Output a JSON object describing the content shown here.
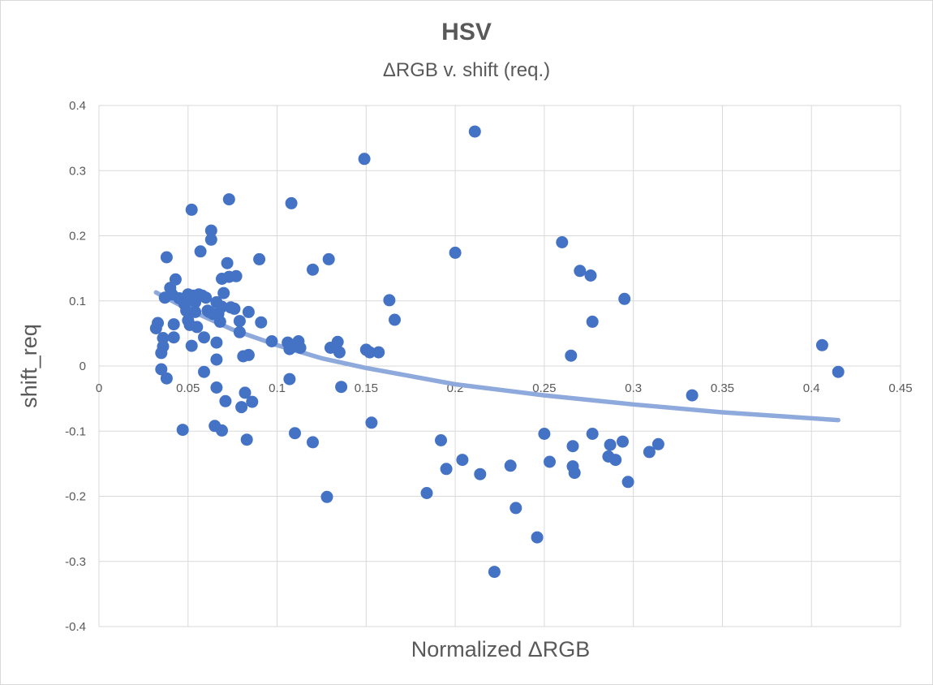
{
  "chart_data": {
    "type": "scatter",
    "title": "HSV",
    "subtitle": "ΔRGB v. shift (req.)",
    "xlabel": "Normalized ΔRGB",
    "ylabel": "shift_req",
    "xlim": [
      0,
      0.45
    ],
    "ylim": [
      -0.4,
      0.4
    ],
    "xticks": [
      0,
      0.05,
      0.1,
      0.15,
      0.2,
      0.25,
      0.3,
      0.35,
      0.4,
      0.45
    ],
    "xtick_labels": [
      "0",
      "0.05",
      "0.1",
      "0.15",
      "0.2",
      "0.25",
      "0.3",
      "0.35",
      "0.4",
      "0.45"
    ],
    "yticks": [
      -0.4,
      -0.3,
      -0.2,
      -0.1,
      0,
      0.1,
      0.2,
      0.3,
      0.4
    ],
    "ytick_labels": [
      "-0.4",
      "-0.3",
      "-0.2",
      "-0.1",
      "0",
      "0.1",
      "0.2",
      "0.3",
      "0.4"
    ],
    "grid": true,
    "legend": "none",
    "colors": {
      "points": "#4472C4",
      "trendline": "#8EA9DB",
      "grid": "#d9d9d9",
      "text": "#595959"
    },
    "trendline": {
      "type": "logarithmic",
      "x": [
        0.032,
        0.05,
        0.075,
        0.1,
        0.125,
        0.15,
        0.2,
        0.25,
        0.3,
        0.35,
        0.415
      ],
      "y": [
        0.113,
        0.087,
        0.056,
        0.032,
        0.012,
        -0.003,
        -0.028,
        -0.045,
        -0.059,
        -0.071,
        -0.083
      ]
    },
    "series": [
      {
        "points": [
          [
            0.032,
            0.058
          ],
          [
            0.033,
            0.066
          ],
          [
            0.035,
            -0.005
          ],
          [
            0.035,
            0.02
          ],
          [
            0.036,
            0.03
          ],
          [
            0.036,
            0.043
          ],
          [
            0.037,
            0.105
          ],
          [
            0.038,
            0.167
          ],
          [
            0.038,
            -0.019
          ],
          [
            0.04,
            0.12
          ],
          [
            0.041,
            0.11
          ],
          [
            0.042,
            0.064
          ],
          [
            0.042,
            0.044
          ],
          [
            0.043,
            0.133
          ],
          [
            0.045,
            0.104
          ],
          [
            0.047,
            -0.098
          ],
          [
            0.048,
            0.095
          ],
          [
            0.049,
            0.085
          ],
          [
            0.05,
            0.11
          ],
          [
            0.05,
            0.07
          ],
          [
            0.051,
            0.063
          ],
          [
            0.052,
            0.031
          ],
          [
            0.052,
            0.24
          ],
          [
            0.053,
            0.108
          ],
          [
            0.054,
            0.098
          ],
          [
            0.054,
            0.083
          ],
          [
            0.055,
            0.06
          ],
          [
            0.056,
            0.11
          ],
          [
            0.057,
            0.176
          ],
          [
            0.058,
            0.108
          ],
          [
            0.059,
            0.044
          ],
          [
            0.059,
            -0.009
          ],
          [
            0.06,
            0.105
          ],
          [
            0.061,
            0.085
          ],
          [
            0.062,
            0.083
          ],
          [
            0.063,
            0.208
          ],
          [
            0.063,
            0.194
          ],
          [
            0.064,
            0.08
          ],
          [
            0.065,
            -0.092
          ],
          [
            0.066,
            0.098
          ],
          [
            0.066,
            0.036
          ],
          [
            0.066,
            0.01
          ],
          [
            0.066,
            -0.033
          ],
          [
            0.067,
            0.08
          ],
          [
            0.068,
            0.068
          ],
          [
            0.069,
            0.134
          ],
          [
            0.069,
            0.091
          ],
          [
            0.069,
            -0.099
          ],
          [
            0.07,
            0.112
          ],
          [
            0.071,
            -0.054
          ],
          [
            0.072,
            0.158
          ],
          [
            0.073,
            0.256
          ],
          [
            0.073,
            0.137
          ],
          [
            0.074,
            0.09
          ],
          [
            0.076,
            0.088
          ],
          [
            0.077,
            0.138
          ],
          [
            0.079,
            0.069
          ],
          [
            0.079,
            0.052
          ],
          [
            0.08,
            -0.063
          ],
          [
            0.081,
            0.015
          ],
          [
            0.082,
            -0.041
          ],
          [
            0.083,
            -0.113
          ],
          [
            0.084,
            0.017
          ],
          [
            0.084,
            0.083
          ],
          [
            0.086,
            -0.055
          ],
          [
            0.09,
            0.164
          ],
          [
            0.091,
            0.067
          ],
          [
            0.097,
            0.038
          ],
          [
            0.106,
            0.036
          ],
          [
            0.107,
            0.026
          ],
          [
            0.107,
            -0.02
          ],
          [
            0.108,
            0.25
          ],
          [
            0.109,
            0.03
          ],
          [
            0.11,
            -0.103
          ],
          [
            0.112,
            0.038
          ],
          [
            0.113,
            0.028
          ],
          [
            0.12,
            0.148
          ],
          [
            0.12,
            -0.117
          ],
          [
            0.128,
            -0.201
          ],
          [
            0.129,
            0.164
          ],
          [
            0.13,
            0.028
          ],
          [
            0.134,
            0.037
          ],
          [
            0.135,
            0.021
          ],
          [
            0.136,
            -0.032
          ],
          [
            0.149,
            0.318
          ],
          [
            0.15,
            0.025
          ],
          [
            0.152,
            0.021
          ],
          [
            0.153,
            -0.087
          ],
          [
            0.157,
            0.021
          ],
          [
            0.163,
            0.101
          ],
          [
            0.166,
            0.071
          ],
          [
            0.184,
            -0.195
          ],
          [
            0.192,
            -0.114
          ],
          [
            0.195,
            -0.158
          ],
          [
            0.2,
            0.174
          ],
          [
            0.204,
            -0.144
          ],
          [
            0.211,
            0.36
          ],
          [
            0.214,
            -0.166
          ],
          [
            0.222,
            -0.316
          ],
          [
            0.231,
            -0.153
          ],
          [
            0.234,
            -0.218
          ],
          [
            0.246,
            -0.263
          ],
          [
            0.25,
            -0.104
          ],
          [
            0.253,
            -0.147
          ],
          [
            0.26,
            0.19
          ],
          [
            0.265,
            0.016
          ],
          [
            0.266,
            -0.123
          ],
          [
            0.266,
            -0.154
          ],
          [
            0.267,
            -0.164
          ],
          [
            0.27,
            0.146
          ],
          [
            0.276,
            0.139
          ],
          [
            0.277,
            0.068
          ],
          [
            0.277,
            -0.104
          ],
          [
            0.286,
            -0.139
          ],
          [
            0.287,
            -0.121
          ],
          [
            0.29,
            -0.144
          ],
          [
            0.294,
            -0.116
          ],
          [
            0.295,
            0.103
          ],
          [
            0.297,
            -0.178
          ],
          [
            0.309,
            -0.132
          ],
          [
            0.314,
            -0.12
          ],
          [
            0.333,
            -0.045
          ],
          [
            0.406,
            0.032
          ],
          [
            0.415,
            -0.009
          ]
        ]
      }
    ]
  }
}
